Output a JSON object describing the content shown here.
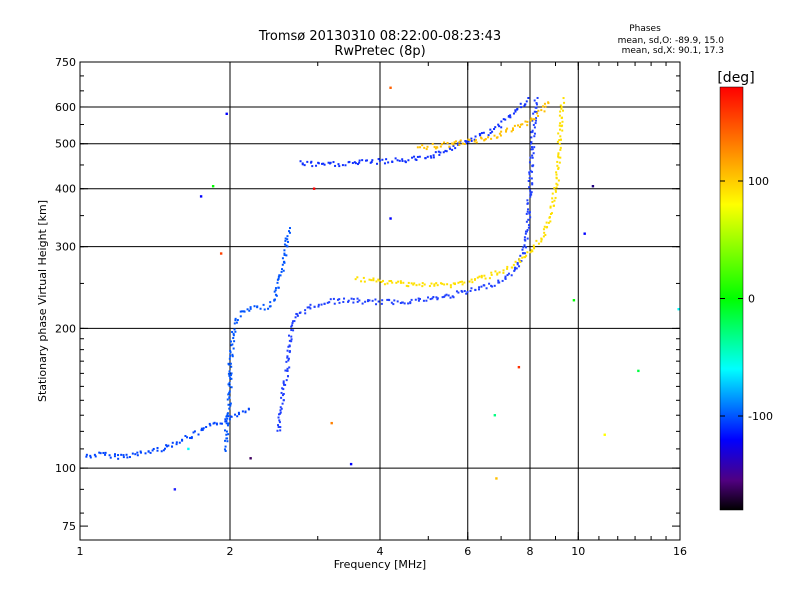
{
  "chart_data": {
    "type": "scatter",
    "title": "Tromsø 20130310 08:22:00-08:23:43",
    "subtitle": "RwPretec (8p)",
    "phases_box": {
      "heading": "Phases",
      "line_o": "mean, sd,O: -89.9, 15.0",
      "line_x": "mean, sd,X: 90.1, 17.3"
    },
    "xlabel": "Frequency [MHz]",
    "ylabel": "Stationary phase Virtual Height [km]",
    "x_scale": "log",
    "y_scale": "log",
    "xlim": [
      1,
      16
    ],
    "ylim": [
      70,
      750
    ],
    "x_ticks": [
      {
        "value": 1,
        "label": "1"
      },
      {
        "value": 2,
        "label": "2"
      },
      {
        "value": 4,
        "label": "4"
      },
      {
        "value": 6,
        "label": "6"
      },
      {
        "value": 8,
        "label": "8"
      },
      {
        "value": 10,
        "label": "10"
      },
      {
        "value": 16,
        "label": "16"
      }
    ],
    "y_ticks": [
      {
        "value": 75,
        "label": "75"
      },
      {
        "value": 100,
        "label": "100"
      },
      {
        "value": 200,
        "label": "200"
      },
      {
        "value": 300,
        "label": "300"
      },
      {
        "value": 400,
        "label": "400"
      },
      {
        "value": 500,
        "label": "500"
      },
      {
        "value": 600,
        "label": "600"
      },
      {
        "value": 750,
        "label": "750"
      }
    ],
    "x_grid": [
      2,
      4,
      6,
      8,
      10
    ],
    "y_grid": [
      100,
      200,
      300,
      400,
      500,
      600
    ],
    "grid": true,
    "colorbar": {
      "label": "[deg]",
      "range": [
        -180,
        180
      ],
      "ticks": [
        {
          "value": 100,
          "label": "100"
        },
        {
          "value": 0,
          "label": "0"
        },
        {
          "value": -100,
          "label": "-100"
        }
      ],
      "stops": [
        {
          "value": -180,
          "color": "#000000"
        },
        {
          "value": -155,
          "color": "#500080"
        },
        {
          "value": -120,
          "color": "#0000ff"
        },
        {
          "value": -60,
          "color": "#00ffff"
        },
        {
          "value": 0,
          "color": "#00ff00"
        },
        {
          "value": 80,
          "color": "#ffff00"
        },
        {
          "value": 130,
          "color": "#ff8000"
        },
        {
          "value": 180,
          "color": "#ff0000"
        }
      ]
    },
    "traces": [
      {
        "trace": "o-low",
        "phase": -95,
        "color": "#0044ff",
        "points": [
          [
            1.03,
            106
          ],
          [
            1.1,
            107
          ],
          [
            1.2,
            106
          ],
          [
            1.3,
            107
          ],
          [
            1.4,
            109
          ],
          [
            1.5,
            111
          ],
          [
            1.6,
            115
          ],
          [
            1.7,
            118
          ],
          [
            1.8,
            122
          ],
          [
            1.9,
            125
          ],
          [
            2.0,
            128
          ],
          [
            2.1,
            132
          ],
          [
            2.2,
            135
          ]
        ]
      },
      {
        "trace": "o-e-cusp",
        "phase": -90,
        "color": "#0055ff",
        "points": [
          [
            1.95,
            110
          ],
          [
            1.98,
            125
          ],
          [
            2.0,
            145
          ],
          [
            2.0,
            165
          ],
          [
            2.02,
            185
          ],
          [
            2.05,
            205
          ],
          [
            2.1,
            215
          ],
          [
            2.2,
            220
          ],
          [
            2.35,
            222
          ],
          [
            2.45,
            228
          ],
          [
            2.5,
            245
          ],
          [
            2.55,
            270
          ],
          [
            2.6,
            300
          ],
          [
            2.62,
            330
          ]
        ]
      },
      {
        "trace": "o-f1",
        "phase": -105,
        "color": "#2040ff",
        "points": [
          [
            2.5,
            120
          ],
          [
            2.55,
            140
          ],
          [
            2.6,
            160
          ],
          [
            2.62,
            180
          ],
          [
            2.66,
            200
          ],
          [
            2.75,
            215
          ],
          [
            2.9,
            222
          ],
          [
            3.1,
            228
          ],
          [
            3.4,
            230
          ],
          [
            3.8,
            228
          ],
          [
            4.3,
            228
          ],
          [
            4.8,
            230
          ],
          [
            5.3,
            233
          ],
          [
            5.8,
            238
          ],
          [
            6.3,
            243
          ],
          [
            6.8,
            250
          ],
          [
            7.2,
            258
          ],
          [
            7.5,
            268
          ],
          [
            7.7,
            285
          ],
          [
            7.85,
            310
          ],
          [
            7.95,
            350
          ],
          [
            8.0,
            400
          ],
          [
            8.05,
            450
          ],
          [
            8.1,
            500
          ],
          [
            8.15,
            560
          ],
          [
            8.2,
            600
          ],
          [
            8.25,
            630
          ]
        ]
      },
      {
        "trace": "o-f2-upper",
        "phase": -100,
        "color": "#1030ff",
        "points": [
          [
            2.75,
            455
          ],
          [
            3.0,
            450
          ],
          [
            3.3,
            452
          ],
          [
            3.6,
            455
          ],
          [
            4.0,
            458
          ],
          [
            4.4,
            460
          ],
          [
            4.8,
            465
          ],
          [
            5.2,
            475
          ],
          [
            5.6,
            490
          ],
          [
            6.0,
            505
          ],
          [
            6.5,
            525
          ],
          [
            7.0,
            550
          ],
          [
            7.4,
            580
          ],
          [
            7.8,
            610
          ],
          [
            8.0,
            630
          ]
        ]
      },
      {
        "trace": "x-f1",
        "phase": 95,
        "color": "#ffe000",
        "points": [
          [
            3.6,
            255
          ],
          [
            4.0,
            252
          ],
          [
            4.5,
            250
          ],
          [
            5.0,
            248
          ],
          [
            5.5,
            248
          ],
          [
            6.0,
            252
          ],
          [
            6.5,
            258
          ],
          [
            7.0,
            265
          ],
          [
            7.5,
            275
          ],
          [
            8.0,
            290
          ],
          [
            8.4,
            310
          ],
          [
            8.7,
            340
          ],
          [
            8.9,
            370
          ],
          [
            9.0,
            400
          ],
          [
            9.1,
            430
          ],
          [
            9.15,
            480
          ],
          [
            9.2,
            530
          ],
          [
            9.25,
            580
          ],
          [
            9.3,
            630
          ]
        ]
      },
      {
        "trace": "x-f2-upper",
        "phase": 110,
        "color": "#ffc000",
        "points": [
          [
            4.8,
            490
          ],
          [
            5.2,
            495
          ],
          [
            5.6,
            500
          ],
          [
            6.0,
            505
          ],
          [
            6.5,
            512
          ],
          [
            7.0,
            525
          ],
          [
            7.5,
            540
          ],
          [
            8.0,
            560
          ],
          [
            8.5,
            590
          ],
          [
            8.8,
            620
          ]
        ]
      }
    ],
    "scattered_points": [
      {
        "x": 1.55,
        "y": 90,
        "phase": -95,
        "color": "#2020ff"
      },
      {
        "x": 1.65,
        "y": 110,
        "phase": -60,
        "color": "#00ffff"
      },
      {
        "x": 1.75,
        "y": 385,
        "phase": -110,
        "color": "#0000ff"
      },
      {
        "x": 1.85,
        "y": 405,
        "phase": 20,
        "color": "#00ff00"
      },
      {
        "x": 1.92,
        "y": 290,
        "phase": 150,
        "color": "#ff4000"
      },
      {
        "x": 1.97,
        "y": 580,
        "phase": -120,
        "color": "#0000ff"
      },
      {
        "x": 2.2,
        "y": 105,
        "phase": -160,
        "color": "#400060"
      },
      {
        "x": 2.95,
        "y": 400,
        "phase": 170,
        "color": "#ff0000"
      },
      {
        "x": 3.2,
        "y": 125,
        "phase": 140,
        "color": "#ff8000"
      },
      {
        "x": 3.5,
        "y": 102,
        "phase": -110,
        "color": "#0000ff"
      },
      {
        "x": 4.2,
        "y": 660,
        "phase": 150,
        "color": "#ff6000"
      },
      {
        "x": 4.2,
        "y": 345,
        "phase": -110,
        "color": "#0000ff"
      },
      {
        "x": 6.8,
        "y": 130,
        "phase": -40,
        "color": "#00ff80"
      },
      {
        "x": 6.85,
        "y": 95,
        "phase": 110,
        "color": "#ffc000"
      },
      {
        "x": 7.6,
        "y": 165,
        "phase": 160,
        "color": "#ff3000"
      },
      {
        "x": 10.7,
        "y": 405,
        "phase": -140,
        "color": "#200080"
      },
      {
        "x": 10.3,
        "y": 320,
        "phase": -130,
        "color": "#0000ff"
      },
      {
        "x": 11.3,
        "y": 118,
        "phase": 80,
        "color": "#ffff00"
      },
      {
        "x": 13.2,
        "y": 162,
        "phase": 10,
        "color": "#00ff40"
      },
      {
        "x": 15.9,
        "y": 220,
        "phase": -60,
        "color": "#00ffff"
      },
      {
        "x": 9.8,
        "y": 230,
        "phase": 20,
        "color": "#00ff00"
      }
    ]
  }
}
